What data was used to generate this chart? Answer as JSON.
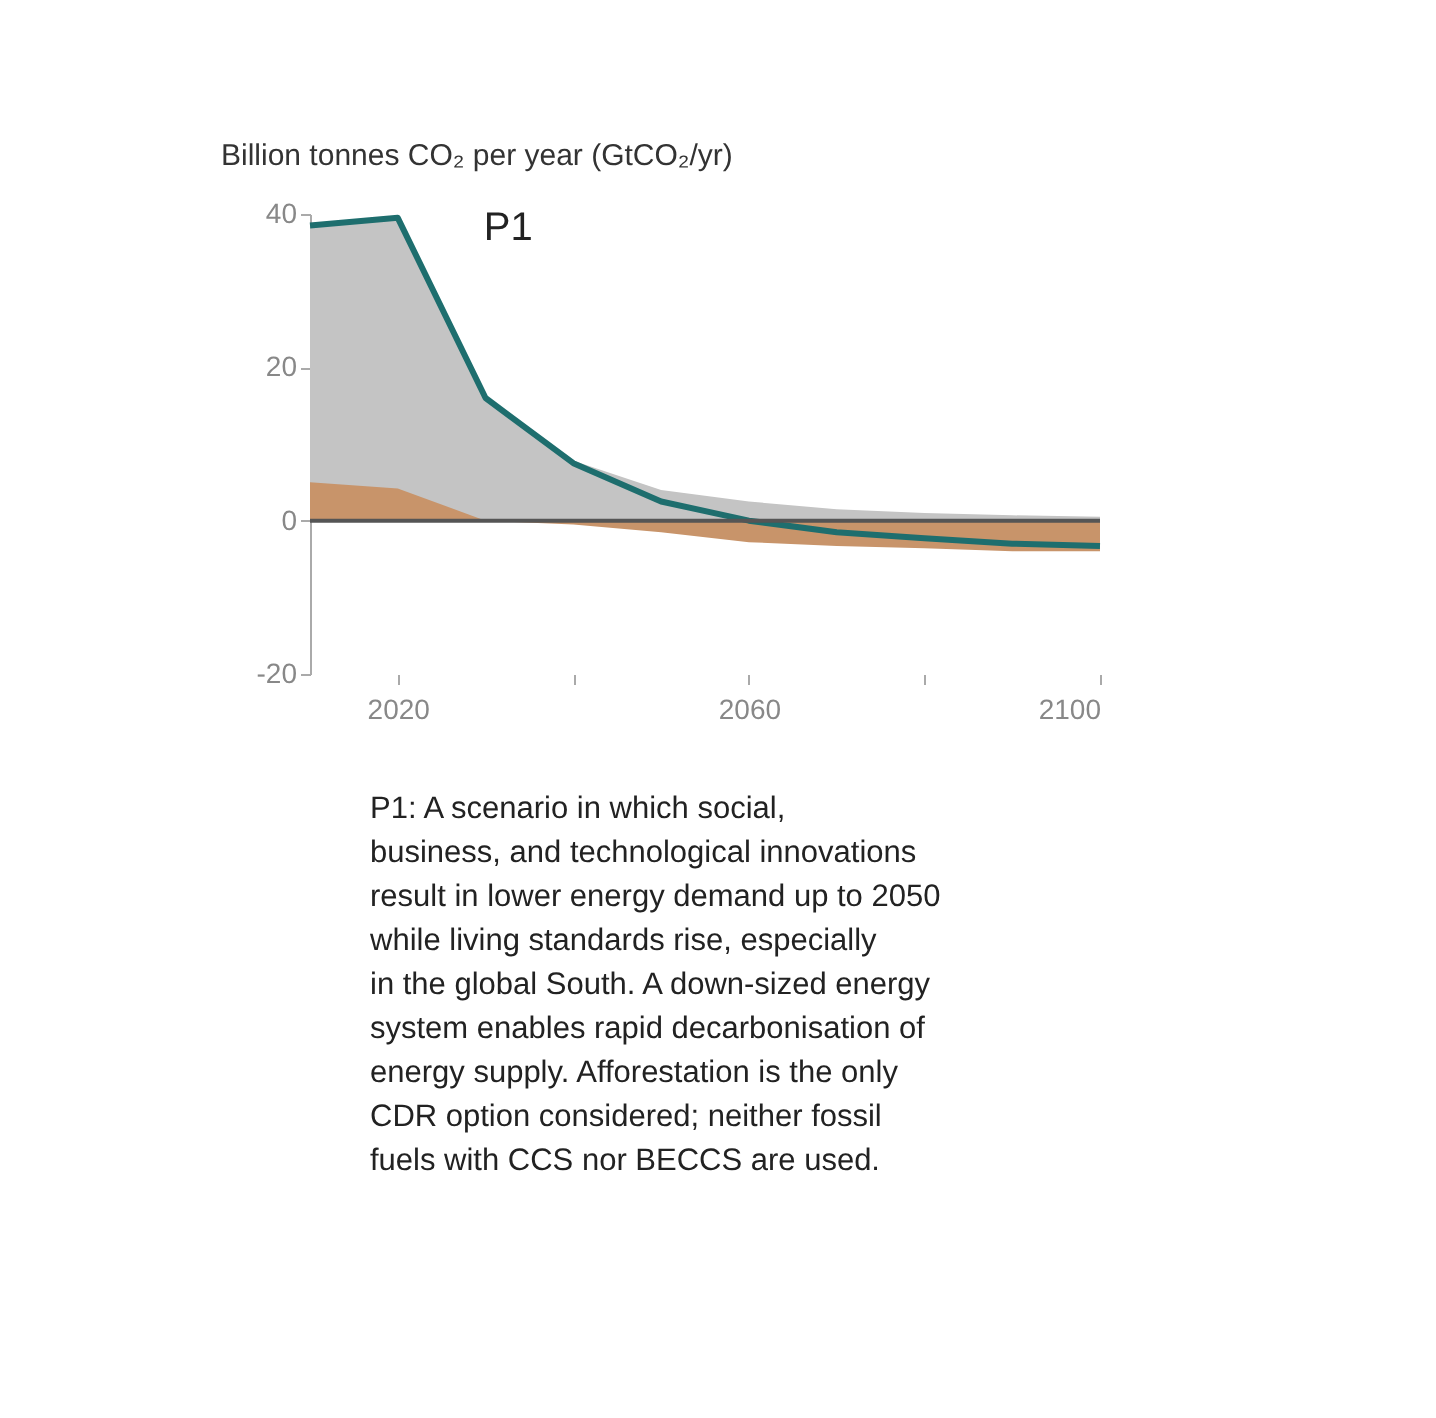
{
  "chart_data": {
    "type": "area",
    "ylabel": "Billion tonnes CO₂ per year (GtCO₂/yr)",
    "x": [
      2010,
      2020,
      2030,
      2040,
      2050,
      2060,
      2070,
      2080,
      2090,
      2100
    ],
    "series": [
      {
        "color": "#c4c4c4",
        "values": [
          38.5,
          39.5,
          16,
          7.8,
          4,
          2.5,
          1.5,
          1,
          0.7,
          0.5
        ]
      },
      {
        "color": "#c8946a",
        "values": [
          5,
          4.2,
          0,
          -0.5,
          -1.5,
          -2.8,
          -3.3,
          -3.6,
          -4,
          -4
        ]
      },
      {
        "type": "line",
        "color": "#1e6e6e",
        "values": [
          38.5,
          39.5,
          16,
          7.5,
          2.5,
          0,
          -1.5,
          -2.3,
          -3,
          -3.3
        ]
      }
    ],
    "xlim": [
      2010,
      2100
    ],
    "xticks": [
      {
        "value": 2020,
        "label": "2020"
      },
      {
        "value": 2040,
        "label": null
      },
      {
        "value": 2060,
        "label": "2060"
      },
      {
        "value": 2080,
        "label": null
      },
      {
        "value": 2100,
        "label": "2100"
      }
    ],
    "ylim": [
      -20,
      40
    ],
    "yticks": [
      -20,
      0,
      20,
      40
    ],
    "ref_lines": [
      {
        "axis": "y",
        "value": 0,
        "color": "#555555"
      }
    ],
    "grid": false,
    "annotations": [
      "P1",
      "P1: A scenario in which social, business, and technological innovations result in lower energy demand up to 2050 while living standards rise, especially in the global South. A down-sized energy system enables rapid decarbonisation of energy supply. Afforestation is the only CDR option considered; neither fossil fuels with CCS nor BECCS are used."
    ]
  }
}
